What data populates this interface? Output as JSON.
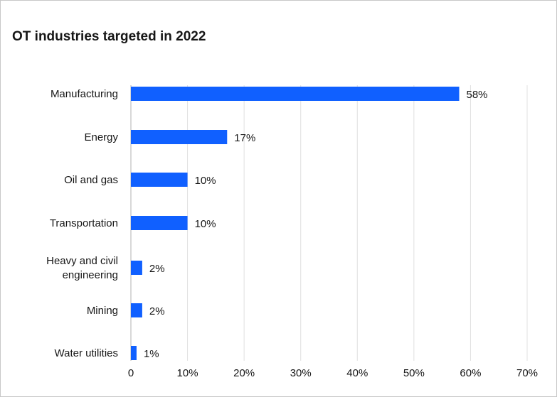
{
  "chart_data": {
    "type": "bar",
    "orientation": "horizontal",
    "title": "OT industries targeted in 2022",
    "categories": [
      [
        "Manufacturing"
      ],
      [
        "Energy"
      ],
      [
        "Oil and gas"
      ],
      [
        "Transportation"
      ],
      [
        "Heavy and civil",
        "engineering"
      ],
      [
        "Mining"
      ],
      [
        "Water utilities"
      ]
    ],
    "values": [
      58,
      17,
      10,
      10,
      2,
      2,
      1
    ],
    "value_labels": [
      "58%",
      "17%",
      "10%",
      "10%",
      "2%",
      "2%",
      "1%"
    ],
    "xlim": [
      0,
      70
    ],
    "x_ticks": [
      0,
      10,
      20,
      30,
      40,
      50,
      60,
      70
    ],
    "x_tick_labels": [
      "0",
      "10%",
      "20%",
      "30%",
      "40%",
      "50%",
      "60%",
      "70%"
    ],
    "grid": "vertical",
    "bar_color": "#1060ff",
    "grid_color": "#e0e0e0"
  }
}
